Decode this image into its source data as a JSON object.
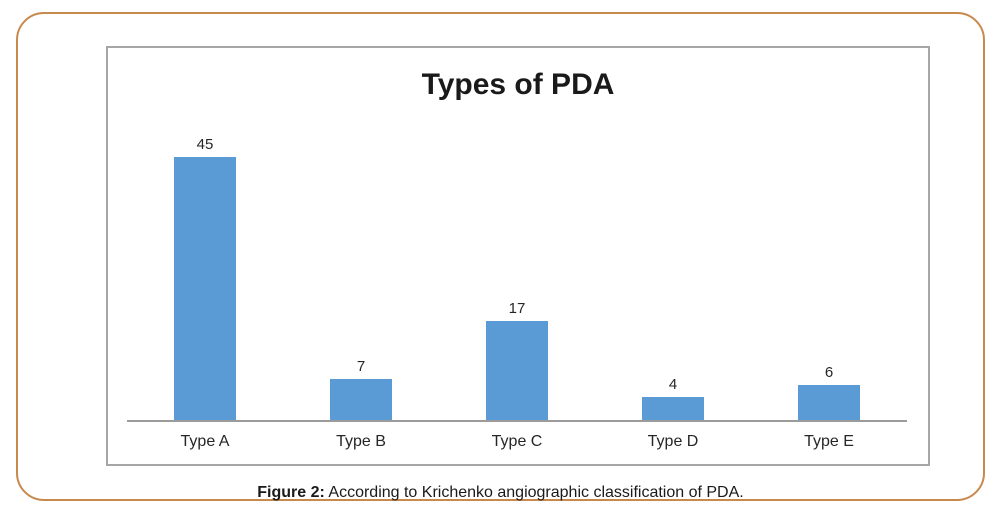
{
  "figure": {
    "caption": {
      "label": "Figure 2:",
      "text": " According to Krichenko angiographic classification of PDA."
    },
    "colors": {
      "bar": "#5B9BD5",
      "frame_border": "#C8894D",
      "chart_border": "#A6A6A6",
      "axis_line": "#9b9b9b",
      "title_text": "#1a1a1a",
      "label_text": "#262626"
    }
  },
  "chart_data": {
    "type": "bar",
    "title": "Types of PDA",
    "categories": [
      "Type A",
      "Type B",
      "Type C",
      "Type D",
      "Type E"
    ],
    "values": [
      45,
      7,
      17,
      4,
      6
    ],
    "xlabel": "",
    "ylabel": "",
    "ylim": [
      0,
      50
    ],
    "grid": false,
    "legend": false,
    "data_labels": true,
    "bar_color": "#5B9BD5"
  }
}
